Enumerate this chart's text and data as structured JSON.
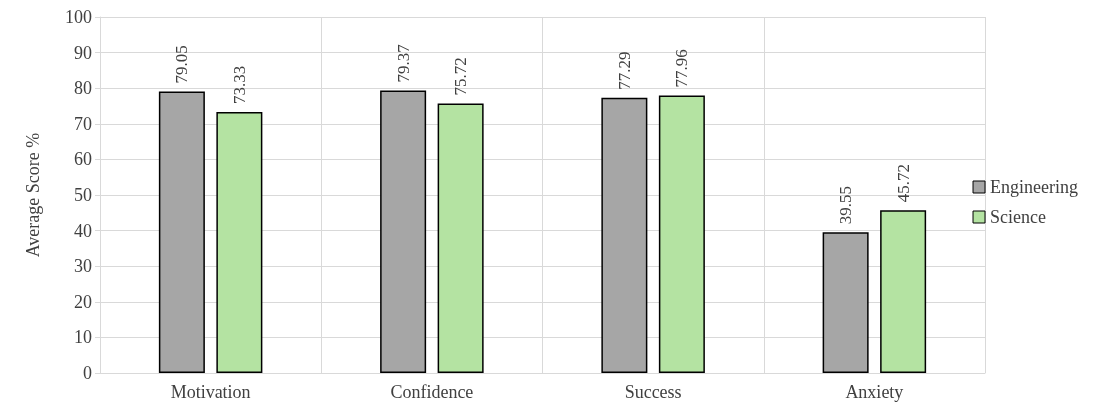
{
  "chart_data": {
    "type": "bar",
    "ylabel": "Average Score %",
    "categories": [
      "Motivation",
      "Confidence",
      "Success",
      "Anxiety"
    ],
    "series": [
      {
        "name": "Engineering",
        "color": "#a6a6a6",
        "values": [
          79.05,
          79.37,
          77.29,
          39.55
        ]
      },
      {
        "name": "Science",
        "color": "#b4e3a2",
        "values": [
          73.33,
          75.72,
          77.96,
          45.72
        ]
      }
    ],
    "ylim": [
      0,
      100
    ],
    "yticks": [
      0,
      10,
      20,
      30,
      40,
      50,
      60,
      70,
      80,
      90,
      100
    ],
    "grid": true,
    "legend": "right",
    "data_labels": true
  }
}
